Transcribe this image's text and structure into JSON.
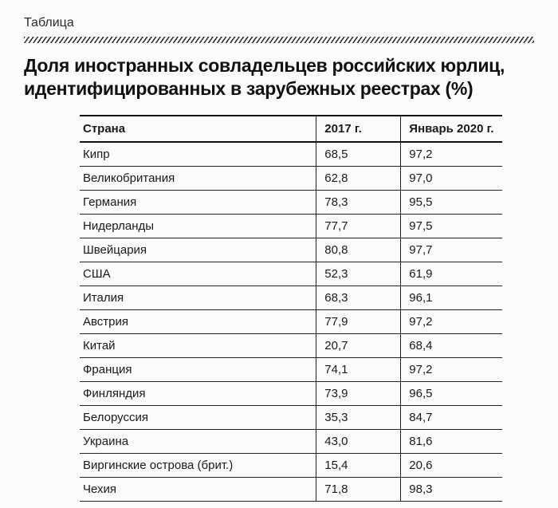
{
  "section_label": "Таблица",
  "title": "Доля иностранных совладельцев российских юрлиц, идентифицированных в зарубежных реестрах (%)",
  "table": {
    "type": "table",
    "columns": [
      "Страна",
      "2017 г.",
      "Январь 2020 г."
    ],
    "col_widths_pct": [
      56,
      20,
      24
    ],
    "header_fontweight": 700,
    "body_fontsize": 15,
    "border_color": "#222222",
    "header_border_width": 2,
    "row_border_width": 1,
    "background_color": "#fbfbfb",
    "text_color": "#1a1a1a",
    "rows": [
      [
        "Кипр",
        "68,5",
        "97,2"
      ],
      [
        "Великобритания",
        "62,8",
        "97,0"
      ],
      [
        "Германия",
        "78,3",
        "95,5"
      ],
      [
        "Нидерланды",
        "77,7",
        "97,5"
      ],
      [
        "Швейцария",
        "80,8",
        "97,7"
      ],
      [
        "США",
        "52,3",
        "61,9"
      ],
      [
        "Италия",
        "68,3",
        "96,1"
      ],
      [
        "Австрия",
        "77,9",
        "97,2"
      ],
      [
        "Китай",
        "20,7",
        "68,4"
      ],
      [
        "Франция",
        "74,1",
        "97,2"
      ],
      [
        "Финляндия",
        "73,9",
        "96,5"
      ],
      [
        "Белоруссия",
        "35,3",
        "84,7"
      ],
      [
        "Украина",
        "43,0",
        "81,6"
      ],
      [
        "Виргинские острова (брит.)",
        "15,4",
        "20,6"
      ],
      [
        "Чехия",
        "71,8",
        "98,3"
      ]
    ]
  }
}
